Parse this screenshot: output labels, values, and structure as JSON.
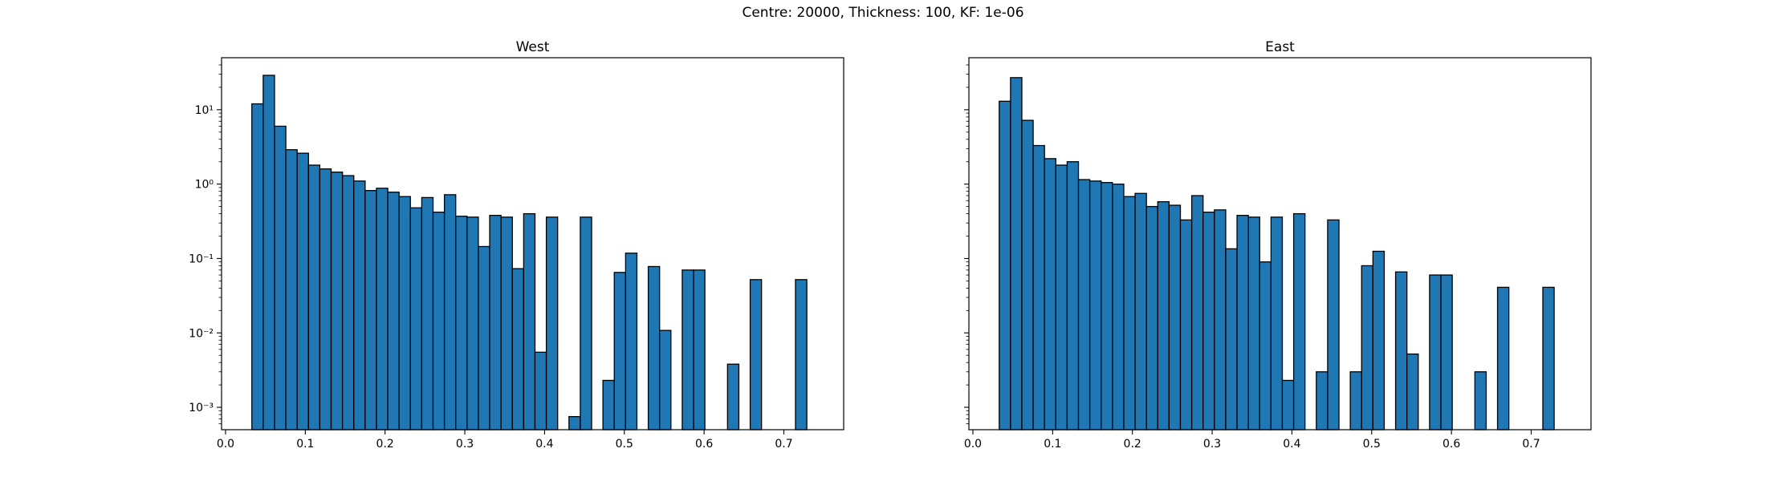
{
  "figure": {
    "suptitle": "Centre: 20000, Thickness: 100, KF: 1e-06"
  },
  "colors": {
    "bar_fill": "#1f77b4",
    "bar_edge": "#000000",
    "axis": "#000000",
    "background": "#ffffff"
  },
  "chart_data": [
    {
      "type": "bar",
      "title": "West",
      "xlabel": "",
      "ylabel": "",
      "yscale": "log",
      "xlim": [
        -0.005,
        0.775
      ],
      "ylim": [
        0.0005,
        50
      ],
      "grid": false,
      "bin_width": 0.0142,
      "bin_start": 0.033,
      "xticks": [
        0.0,
        0.1,
        0.2,
        0.3,
        0.4,
        0.5,
        0.6,
        0.7
      ],
      "xtick_labels": [
        "0.0",
        "0.1",
        "0.2",
        "0.3",
        "0.4",
        "0.5",
        "0.6",
        "0.7"
      ],
      "yticks": [
        0.001,
        0.01,
        0.1,
        1,
        10
      ],
      "ytick_labels": [
        "10⁻³",
        "10⁻²",
        "10⁻¹",
        "10⁰",
        "10¹"
      ],
      "values": [
        12,
        29,
        6,
        2.9,
        2.6,
        1.8,
        1.6,
        1.45,
        1.3,
        1.1,
        0.82,
        0.88,
        0.78,
        0.68,
        0.48,
        0.66,
        0.42,
        0.72,
        0.37,
        0.36,
        0.145,
        0.38,
        0.36,
        0.073,
        0.4,
        0.0055,
        0.36,
        0,
        0.00075,
        0.36,
        0,
        0.0023,
        0.065,
        0.118,
        0,
        0.078,
        0.0108,
        0,
        0.07,
        0.07,
        0,
        0,
        0.0038,
        0,
        0.052,
        0,
        0,
        0,
        0.052
      ]
    },
    {
      "type": "bar",
      "title": "East",
      "xlabel": "",
      "ylabel": "",
      "yscale": "log",
      "xlim": [
        -0.005,
        0.775
      ],
      "ylim": [
        0.0005,
        50
      ],
      "grid": false,
      "bin_width": 0.0142,
      "bin_start": 0.033,
      "xticks": [
        0.0,
        0.1,
        0.2,
        0.3,
        0.4,
        0.5,
        0.6,
        0.7
      ],
      "xtick_labels": [
        "0.0",
        "0.1",
        "0.2",
        "0.3",
        "0.4",
        "0.5",
        "0.6",
        "0.7"
      ],
      "yticks": [
        0.001,
        0.01,
        0.1,
        1,
        10
      ],
      "ytick_labels": [],
      "values": [
        13,
        27,
        7.2,
        3.3,
        2.2,
        1.8,
        2.0,
        1.15,
        1.1,
        1.05,
        1.0,
        0.68,
        0.75,
        0.5,
        0.58,
        0.52,
        0.33,
        0.7,
        0.42,
        0.45,
        0.135,
        0.38,
        0.36,
        0.09,
        0.36,
        0.0023,
        0.4,
        0,
        0.003,
        0.33,
        0,
        0.003,
        0.08,
        0.125,
        0,
        0.066,
        0.0052,
        0,
        0.06,
        0.06,
        0,
        0,
        0.003,
        0,
        0.041,
        0,
        0,
        0,
        0.041
      ]
    }
  ]
}
